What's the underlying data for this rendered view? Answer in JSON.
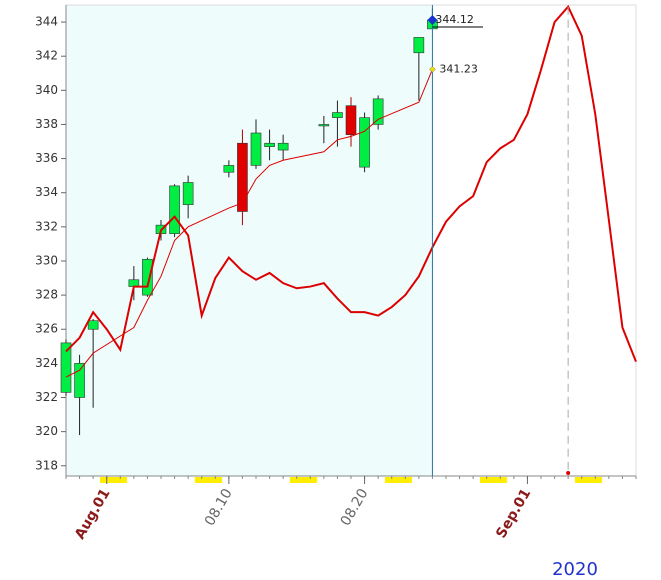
{
  "chart_data": {
    "type": "candlestick",
    "xlim": [
      "2020-07-29",
      "2020-09-09"
    ],
    "ylim": [
      317.4,
      345
    ],
    "yticks": [
      318,
      320,
      322,
      324,
      326,
      328,
      330,
      332,
      334,
      336,
      338,
      340,
      342,
      344
    ],
    "xticks": [
      {
        "value": "2020-08-01",
        "label": "Aug.01",
        "color": "#8b1a1a"
      },
      {
        "value": "2020-08-10",
        "label": "08.10",
        "color": "#666666"
      },
      {
        "value": "2020-08-20",
        "label": "08.20",
        "color": "#666666"
      },
      {
        "value": "2020-09-01",
        "label": "Sep.01",
        "color": "#8b1a1a"
      }
    ],
    "year_label": "2020",
    "candles": {
      "up_color": "#00ee44",
      "down_color": "#e00000",
      "x": [
        "2020-07-29",
        "2020-07-30",
        "2020-07-31",
        "2020-08-03",
        "2020-08-04",
        "2020-08-05",
        "2020-08-06",
        "2020-08-07",
        "2020-08-10",
        "2020-08-11",
        "2020-08-12",
        "2020-08-13",
        "2020-08-14",
        "2020-08-17",
        "2020-08-18",
        "2020-08-19",
        "2020-08-20",
        "2020-08-21",
        "2020-08-24",
        "2020-08-25"
      ],
      "open": [
        322.3,
        322.0,
        326.0,
        328.5,
        328.0,
        331.6,
        331.6,
        333.3,
        335.2,
        336.9,
        335.6,
        336.7,
        336.5,
        338.0,
        338.4,
        339.1,
        335.5,
        338.0,
        342.2,
        343.6
      ],
      "high": [
        325.4,
        324.5,
        326.6,
        329.7,
        330.2,
        332.4,
        334.5,
        335.0,
        335.9,
        337.7,
        338.3,
        337.7,
        337.4,
        338.5,
        339.4,
        339.6,
        338.7,
        339.7,
        343.1,
        344.8
      ],
      "low": [
        322.1,
        319.8,
        321.4,
        327.7,
        327.9,
        331.2,
        331.4,
        332.5,
        334.9,
        332.1,
        335.4,
        335.9,
        335.9,
        336.9,
        336.7,
        336.7,
        335.2,
        337.7,
        339.4,
        343.6
      ],
      "close": [
        325.2,
        324.0,
        326.5,
        328.9,
        330.1,
        332.1,
        334.4,
        334.6,
        335.6,
        332.9,
        337.5,
        336.9,
        336.9,
        338.0,
        338.7,
        337.4,
        338.4,
        339.5,
        343.1,
        344.12
      ]
    },
    "lines": [
      {
        "color": "#dd0000",
        "width": 1,
        "x": [
          "2020-07-29",
          "2020-07-30",
          "2020-07-31",
          "2020-08-03",
          "2020-08-04",
          "2020-08-05",
          "2020-08-06",
          "2020-08-07",
          "2020-08-10",
          "2020-08-11",
          "2020-08-12",
          "2020-08-13",
          "2020-08-14",
          "2020-08-17",
          "2020-08-18",
          "2020-08-19",
          "2020-08-20",
          "2020-08-21",
          "2020-08-24",
          "2020-08-25"
        ],
        "values": [
          323.2,
          323.6,
          324.6,
          326.1,
          327.7,
          329.1,
          331.2,
          332.0,
          333.1,
          333.4,
          334.8,
          335.6,
          335.9,
          336.4,
          337.1,
          337.3,
          337.6,
          338.3,
          339.3,
          341.23
        ]
      },
      {
        "color": "#dd0000",
        "width": 2,
        "x": [
          "2020-07-29",
          "2020-07-30",
          "2020-07-31",
          "2020-08-01",
          "2020-08-02",
          "2020-08-03",
          "2020-08-04",
          "2020-08-05",
          "2020-08-06",
          "2020-08-07",
          "2020-08-08",
          "2020-08-09",
          "2020-08-10",
          "2020-08-11",
          "2020-08-12",
          "2020-08-13",
          "2020-08-14",
          "2020-08-15",
          "2020-08-16",
          "2020-08-17",
          "2020-08-18",
          "2020-08-19",
          "2020-08-20",
          "2020-08-21",
          "2020-08-22",
          "2020-08-23",
          "2020-08-24",
          "2020-08-25",
          "2020-08-26",
          "2020-08-27",
          "2020-08-28",
          "2020-08-29",
          "2020-08-30",
          "2020-08-31",
          "2020-09-01",
          "2020-09-02",
          "2020-09-03",
          "2020-09-04",
          "2020-09-05",
          "2020-09-06",
          "2020-09-07",
          "2020-09-08",
          "2020-09-09"
        ],
        "values": [
          324.7,
          325.5,
          327.0,
          326.0,
          324.8,
          328.5,
          328.5,
          331.8,
          332.6,
          331.5,
          326.8,
          329.0,
          330.2,
          329.4,
          328.9,
          329.3,
          328.7,
          328.4,
          328.5,
          328.7,
          327.8,
          327.0,
          327.0,
          326.8,
          327.3,
          328.0,
          329.1,
          330.8,
          332.3,
          333.2,
          333.8,
          335.8,
          336.6,
          337.1,
          338.6,
          341.2,
          344.0,
          344.9,
          343.2,
          338.6,
          332.4,
          326.1,
          324.1
        ]
      }
    ]
  }
}
